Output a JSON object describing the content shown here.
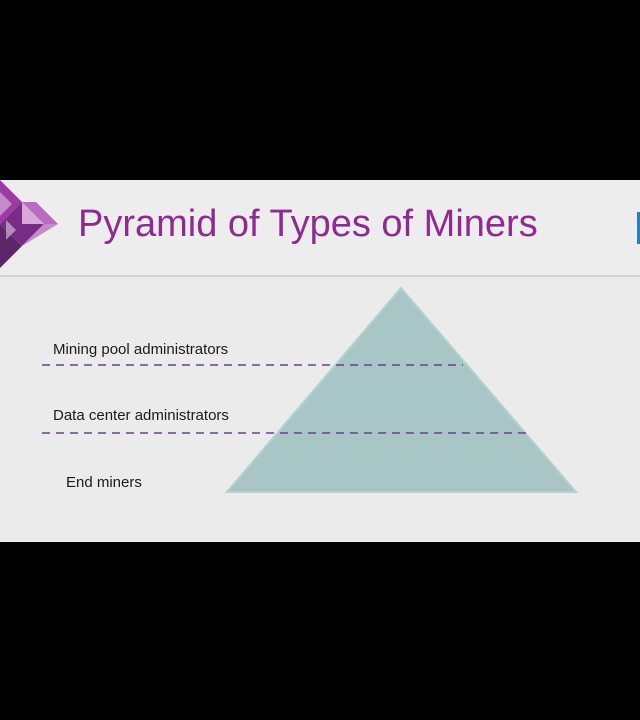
{
  "slide": {
    "title": "Pyramid of Types of Miners"
  },
  "pyramid": {
    "tiers": [
      {
        "label": "Mining pool administrators"
      },
      {
        "label": "Data center administrators"
      },
      {
        "label": "End miners"
      }
    ]
  },
  "colors": {
    "title": "#8e2a91",
    "pyramid_fill": "#a9c6c6",
    "pyramid_stroke": "#b4d0d0",
    "divider": "#6c3f8f",
    "label": "#1a1a1a",
    "slide_background": "#ebebeb",
    "frame": "#000000",
    "logo_primary": "#8e2a91",
    "logo_secondary": "#6a2a78"
  },
  "icons": {
    "logo": "purple-diamond-tile-logo-icon"
  }
}
